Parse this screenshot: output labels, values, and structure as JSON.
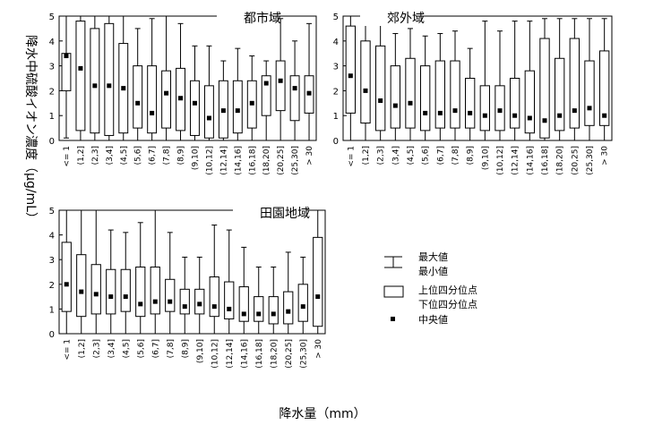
{
  "chart_data": {
    "type": "boxplot",
    "ylabel": "降水中硫酸イオン濃度（μg/mL）",
    "xlabel": "降水量（mm）",
    "categories": [
      "<= 1",
      "(1,2]",
      "(2,3]",
      "(3,4]",
      "(4,5]",
      "(5,6]",
      "(6,7]",
      "(7,8]",
      "(8,9]",
      "(9,10]",
      "(10,12]",
      "(12,14]",
      "(14,16]",
      "(16,18]",
      "(18,20]",
      "(20,25]",
      "(25,30]",
      "> 30"
    ],
    "ylim": [
      0,
      5
    ],
    "yticks": [
      "0",
      "1",
      "2",
      "3",
      "4",
      "5"
    ],
    "panels": [
      {
        "title": "都市域",
        "boxes": [
          {
            "max": 5.0,
            "q3": 3.5,
            "median": 3.4,
            "q1": 2.0,
            "min": 0.1
          },
          {
            "max": 5.0,
            "q3": 4.8,
            "median": 2.9,
            "q1": 0.4,
            "min": 0.0
          },
          {
            "max": 5.0,
            "q3": 4.5,
            "median": 2.2,
            "q1": 0.3,
            "min": 0.0
          },
          {
            "max": 5.0,
            "q3": 4.7,
            "median": 2.2,
            "q1": 0.2,
            "min": 0.0
          },
          {
            "max": 5.0,
            "q3": 3.9,
            "median": 2.1,
            "q1": 0.3,
            "min": 0.0
          },
          {
            "max": 4.5,
            "q3": 3.0,
            "median": 1.5,
            "q1": 0.5,
            "min": 0.0
          },
          {
            "max": 4.9,
            "q3": 3.0,
            "median": 1.1,
            "q1": 0.3,
            "min": 0.0
          },
          {
            "max": 5.0,
            "q3": 2.8,
            "median": 1.9,
            "q1": 0.5,
            "min": 0.0
          },
          {
            "max": 4.7,
            "q3": 2.9,
            "median": 1.7,
            "q1": 0.4,
            "min": 0.0
          },
          {
            "max": 3.8,
            "q3": 2.4,
            "median": 1.5,
            "q1": 0.2,
            "min": 0.0
          },
          {
            "max": 3.8,
            "q3": 2.2,
            "median": 0.9,
            "q1": 0.1,
            "min": 0.0
          },
          {
            "max": 3.2,
            "q3": 2.4,
            "median": 1.2,
            "q1": 0.1,
            "min": 0.0
          },
          {
            "max": 3.7,
            "q3": 2.4,
            "median": 1.2,
            "q1": 0.3,
            "min": 0.0
          },
          {
            "max": 3.4,
            "q3": 2.4,
            "median": 1.5,
            "q1": 0.5,
            "min": 0.0
          },
          {
            "max": 3.2,
            "q3": 2.6,
            "median": 2.3,
            "q1": 1.0,
            "min": 0.0
          },
          {
            "max": 4.9,
            "q3": 3.2,
            "median": 2.4,
            "q1": 1.2,
            "min": 0.0
          },
          {
            "max": 4.0,
            "q3": 2.6,
            "median": 2.1,
            "q1": 0.8,
            "min": 0.0
          },
          {
            "max": 4.7,
            "q3": 2.6,
            "median": 1.9,
            "q1": 1.1,
            "min": 0.0
          }
        ]
      },
      {
        "title": "郊外域",
        "boxes": [
          {
            "max": 5.0,
            "q3": 4.6,
            "median": 2.6,
            "q1": 1.1,
            "min": 0.0
          },
          {
            "max": 5.0,
            "q3": 4.0,
            "median": 2.0,
            "q1": 0.7,
            "min": 0.0
          },
          {
            "max": 5.0,
            "q3": 3.8,
            "median": 1.6,
            "q1": 0.4,
            "min": 0.0
          },
          {
            "max": 4.3,
            "q3": 3.0,
            "median": 1.4,
            "q1": 0.5,
            "min": 0.0
          },
          {
            "max": 4.5,
            "q3": 3.3,
            "median": 1.5,
            "q1": 0.5,
            "min": 0.0
          },
          {
            "max": 4.2,
            "q3": 3.0,
            "median": 1.1,
            "q1": 0.4,
            "min": 0.0
          },
          {
            "max": 4.3,
            "q3": 3.2,
            "median": 1.1,
            "q1": 0.5,
            "min": 0.0
          },
          {
            "max": 4.4,
            "q3": 3.2,
            "median": 1.2,
            "q1": 0.5,
            "min": 0.0
          },
          {
            "max": 3.7,
            "q3": 2.5,
            "median": 1.1,
            "q1": 0.5,
            "min": 0.0
          },
          {
            "max": 4.8,
            "q3": 2.2,
            "median": 1.0,
            "q1": 0.4,
            "min": 0.0
          },
          {
            "max": 4.4,
            "q3": 2.2,
            "median": 1.2,
            "q1": 0.4,
            "min": 0.0
          },
          {
            "max": 4.8,
            "q3": 2.5,
            "median": 1.0,
            "q1": 0.5,
            "min": 0.0
          },
          {
            "max": 4.8,
            "q3": 2.8,
            "median": 0.9,
            "q1": 0.3,
            "min": 0.0
          },
          {
            "max": 4.9,
            "q3": 4.1,
            "median": 0.8,
            "q1": 0.1,
            "min": 0.0
          },
          {
            "max": 4.9,
            "q3": 3.3,
            "median": 1.0,
            "q1": 0.4,
            "min": 0.0
          },
          {
            "max": 4.9,
            "q3": 4.1,
            "median": 1.2,
            "q1": 0.5,
            "min": 0.0
          },
          {
            "max": 4.9,
            "q3": 3.2,
            "median": 1.3,
            "q1": 0.6,
            "min": 0.0
          },
          {
            "max": 4.9,
            "q3": 3.6,
            "median": 1.0,
            "q1": 0.6,
            "min": 0.0
          }
        ]
      },
      {
        "title": "田園地域",
        "boxes": [
          {
            "max": 5.0,
            "q3": 3.7,
            "median": 2.0,
            "q1": 0.9,
            "min": 0.0
          },
          {
            "max": 5.0,
            "q3": 3.2,
            "median": 1.7,
            "q1": 0.7,
            "min": 0.0
          },
          {
            "max": 5.0,
            "q3": 2.8,
            "median": 1.6,
            "q1": 0.8,
            "min": 0.0
          },
          {
            "max": 4.2,
            "q3": 2.6,
            "median": 1.5,
            "q1": 0.8,
            "min": 0.0
          },
          {
            "max": 4.1,
            "q3": 2.6,
            "median": 1.5,
            "q1": 0.9,
            "min": 0.0
          },
          {
            "max": 4.5,
            "q3": 2.7,
            "median": 1.2,
            "q1": 0.7,
            "min": 0.0
          },
          {
            "max": 5.0,
            "q3": 2.7,
            "median": 1.3,
            "q1": 0.8,
            "min": 0.0
          },
          {
            "max": 4.1,
            "q3": 2.2,
            "median": 1.3,
            "q1": 0.9,
            "min": 0.0
          },
          {
            "max": 3.1,
            "q3": 1.8,
            "median": 1.1,
            "q1": 0.8,
            "min": 0.0
          },
          {
            "max": 3.1,
            "q3": 1.8,
            "median": 1.2,
            "q1": 0.8,
            "min": 0.0
          },
          {
            "max": 4.4,
            "q3": 2.3,
            "median": 1.1,
            "q1": 0.7,
            "min": 0.0
          },
          {
            "max": 4.2,
            "q3": 2.1,
            "median": 1.0,
            "q1": 0.6,
            "min": 0.0
          },
          {
            "max": 3.5,
            "q3": 1.9,
            "median": 0.8,
            "q1": 0.5,
            "min": 0.0
          },
          {
            "max": 2.7,
            "q3": 1.5,
            "median": 0.8,
            "q1": 0.5,
            "min": 0.0
          },
          {
            "max": 2.7,
            "q3": 1.5,
            "median": 0.8,
            "q1": 0.4,
            "min": 0.0
          },
          {
            "max": 3.3,
            "q3": 1.7,
            "median": 0.9,
            "q1": 0.4,
            "min": 0.0
          },
          {
            "max": 3.1,
            "q3": 2.0,
            "median": 1.1,
            "q1": 0.5,
            "min": 0.0
          },
          {
            "max": 5.0,
            "q3": 3.9,
            "median": 1.5,
            "q1": 0.3,
            "min": 0.0
          }
        ]
      }
    ],
    "legend": {
      "whisker_top": "最大値",
      "whisker_bottom": "最小値",
      "box_top": "上位四分位点",
      "box_bottom": "下位四分位点",
      "median": "中央値"
    }
  }
}
